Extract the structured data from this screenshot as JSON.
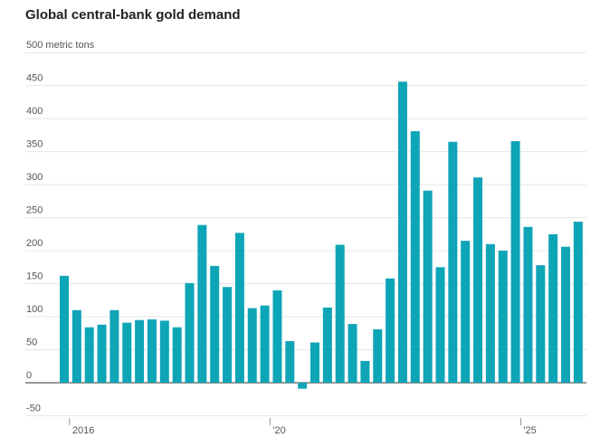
{
  "chart_data": {
    "type": "bar",
    "title": "Global central-bank gold demand",
    "ylabel_unit": "metric tons",
    "ylim": [
      -50,
      500
    ],
    "yticks": [
      -50,
      0,
      50,
      100,
      150,
      200,
      250,
      300,
      350,
      400,
      450,
      500
    ],
    "ytick_labels": [
      "-50",
      "0",
      "50",
      "100",
      "150",
      "200",
      "250",
      "300",
      "350",
      "400",
      "450",
      "500 metric tons"
    ],
    "x_labels": [
      {
        "index": 1,
        "label": "2016"
      },
      {
        "index": 17,
        "label": "'20"
      },
      {
        "index": 37,
        "label": "'25"
      }
    ],
    "color": "#0ea5b7",
    "values": [
      162,
      110,
      84,
      88,
      110,
      91,
      95,
      96,
      94,
      84,
      151,
      239,
      177,
      145,
      227,
      113,
      117,
      140,
      63,
      -9,
      61,
      114,
      209,
      89,
      33,
      81,
      158,
      456,
      381,
      291,
      175,
      365,
      215,
      311,
      210,
      200,
      366,
      236,
      178,
      225,
      206,
      244
    ]
  }
}
